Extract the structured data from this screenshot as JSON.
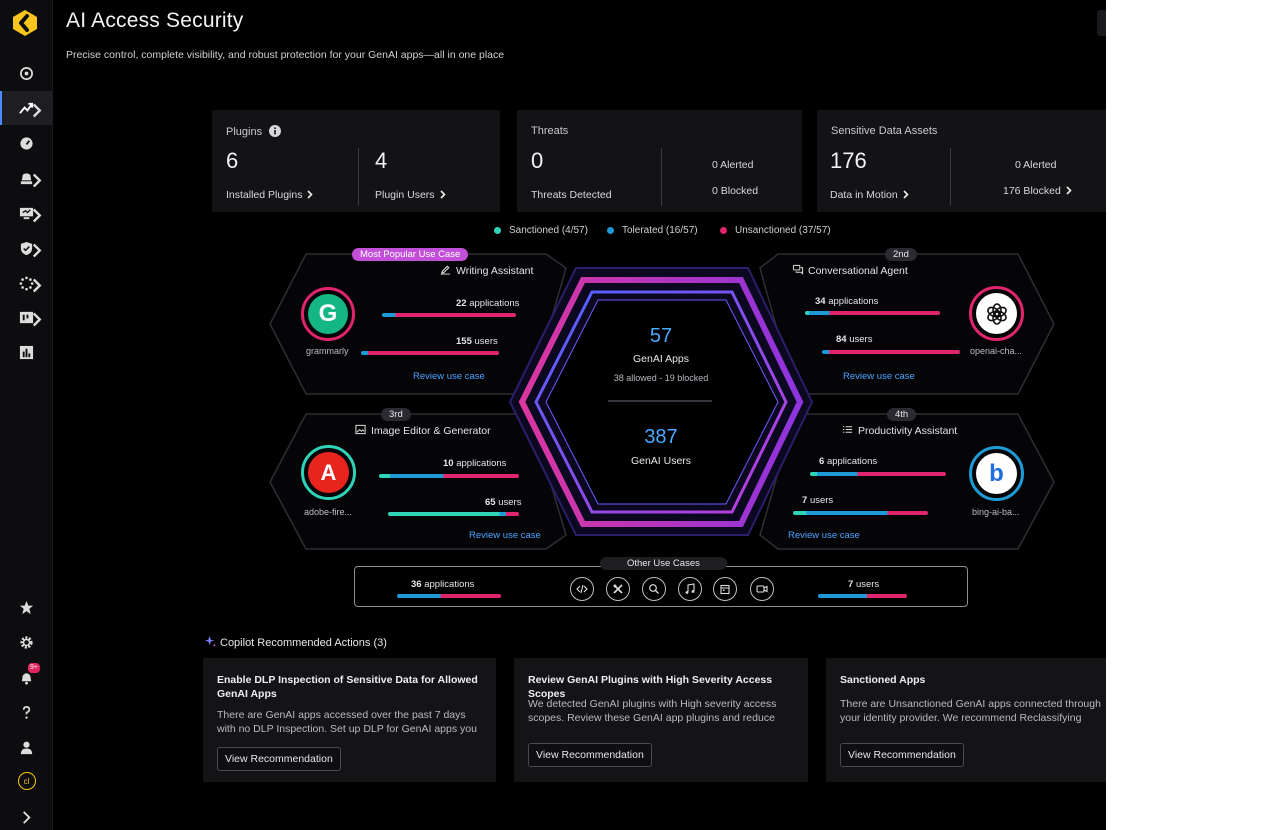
{
  "header": {
    "title": "AI Access Security",
    "subtitle": "Precise control, complete visibility, and robust protection for your GenAI apps—all in one place"
  },
  "sidebar": {
    "items": [
      {
        "icon": "radar-icon"
      },
      {
        "icon": "activity-icon",
        "active": true,
        "chevron": true
      },
      {
        "icon": "gauge-icon"
      },
      {
        "icon": "bell-stack-icon",
        "chevron": true
      },
      {
        "icon": "monitor-icon",
        "chevron": true
      },
      {
        "icon": "shield-check-icon",
        "chevron": true
      },
      {
        "icon": "spinner-icon",
        "chevron": true
      },
      {
        "icon": "board-icon",
        "chevron": true
      },
      {
        "icon": "bar-chart-icon"
      }
    ],
    "bottom": [
      {
        "icon": "star-icon"
      },
      {
        "icon": "gear-icon"
      },
      {
        "icon": "notification-bell-icon",
        "badge": "9+"
      },
      {
        "icon": "help-icon"
      },
      {
        "icon": "user-icon"
      },
      {
        "icon": "org-avatar-icon",
        "text": "cl"
      },
      {
        "icon": "expand-chevron-icon"
      }
    ]
  },
  "cards": {
    "plugins": {
      "label": "Plugins",
      "installed_value": "6",
      "installed_label": "Installed Plugins",
      "users_value": "4",
      "users_label": "Plugin Users"
    },
    "threats": {
      "label": "Threats",
      "detected_value": "0",
      "detected_label": "Threats Detected",
      "alerted": "0 Alerted",
      "blocked": "0 Blocked"
    },
    "sensitive": {
      "label": "Sensitive Data Assets",
      "motion_value": "176",
      "motion_label": "Data in Motion",
      "alerted": "0 Alerted",
      "blocked": "176 Blocked"
    }
  },
  "legend": {
    "sanctioned": "Sanctioned (4/57)",
    "tolerated": "Tolerated (16/57)",
    "unsanctioned": "Unsanctioned (37/57)",
    "colors": {
      "sanctioned": "#2fd3b8",
      "tolerated": "#1e9ad6",
      "unsanctioned": "#e0246e"
    }
  },
  "center": {
    "apps_value": "57",
    "apps_label": "GenAI Apps",
    "apps_sub": "38 allowed - 19 blocked",
    "users_value": "387",
    "users_label": "GenAI Users"
  },
  "use_cases": {
    "writing": {
      "tag": "Most Popular Use Case",
      "title": "Writing Assistant",
      "apps": "22 applications",
      "apps_num": "22",
      "apps_word": "applications",
      "users_num": "155",
      "users_word": "users",
      "review": "Review use case",
      "app_name": "grammarly",
      "apps_bar": {
        "sanctioned": 0,
        "tolerated": 0.1,
        "unsanctioned": 0.9
      },
      "users_bar": {
        "sanctioned": 0,
        "tolerated": 0.05,
        "unsanctioned": 0.95
      }
    },
    "conversational": {
      "tag": "2nd",
      "title": "Conversational Agent",
      "apps_num": "34",
      "apps_word": "applications",
      "users_num": "84",
      "users_word": "users",
      "review": "Review use case",
      "app_name": "openai-cha...",
      "apps_bar": {
        "sanctioned": 0.03,
        "tolerated": 0.15,
        "unsanctioned": 0.82
      },
      "users_bar": {
        "sanctioned": 0,
        "tolerated": 0.05,
        "unsanctioned": 0.95
      }
    },
    "image": {
      "tag": "3rd",
      "title": "Image Editor & Generator",
      "apps_num": "10",
      "apps_word": "applications",
      "users_num": "65",
      "users_word": "users",
      "review": "Review use case",
      "app_name": "adobe-fire...",
      "apps_bar": {
        "sanctioned": 0.08,
        "tolerated": 0.38,
        "unsanctioned": 0.54
      },
      "users_bar": {
        "sanctioned": 0.85,
        "tolerated": 0.05,
        "unsanctioned": 0.1
      }
    },
    "productivity": {
      "tag": "4th",
      "title": "Productivity Assistant",
      "apps_num": "6",
      "apps_word": "applications",
      "users_num": "7",
      "users_word": "users",
      "review": "Review use case",
      "app_name": "bing-ai-ba...",
      "apps_bar": {
        "sanctioned": 0.05,
        "tolerated": 0.3,
        "unsanctioned": 0.65
      },
      "users_bar": {
        "sanctioned": 0.1,
        "tolerated": 0.6,
        "unsanctioned": 0.3
      }
    }
  },
  "other": {
    "label": "Other Use Cases",
    "apps_num": "36",
    "apps_word": "applications",
    "users_num": "7",
    "users_word": "users",
    "icons": [
      "code-icon",
      "tools-icon",
      "search-icon",
      "music-icon",
      "calendar-icon",
      "video-icon"
    ]
  },
  "copilot": {
    "title": "Copilot Recommended Actions",
    "count": "(3)",
    "recs": [
      {
        "title": "Enable DLP Inspection of Sensitive Data for Allowed GenAI Apps",
        "body": "There are GenAI apps accessed over the past 7 days with no DLP Inspection. Set up DLP for GenAI apps you allow",
        "button": "View Recommendation"
      },
      {
        "title": "Review GenAI Plugins with High Severity Access Scopes",
        "body": "We detected GenAI plugins with High severity access scopes. Review these GenAI app plugins and reduce access",
        "button": "View Recommendation"
      },
      {
        "title": "Sanctioned Apps",
        "body": "There are Unsanctioned GenAI apps connected through your identity provider. We recommend Reclassifying these",
        "button": "View Recommendation"
      }
    ]
  }
}
